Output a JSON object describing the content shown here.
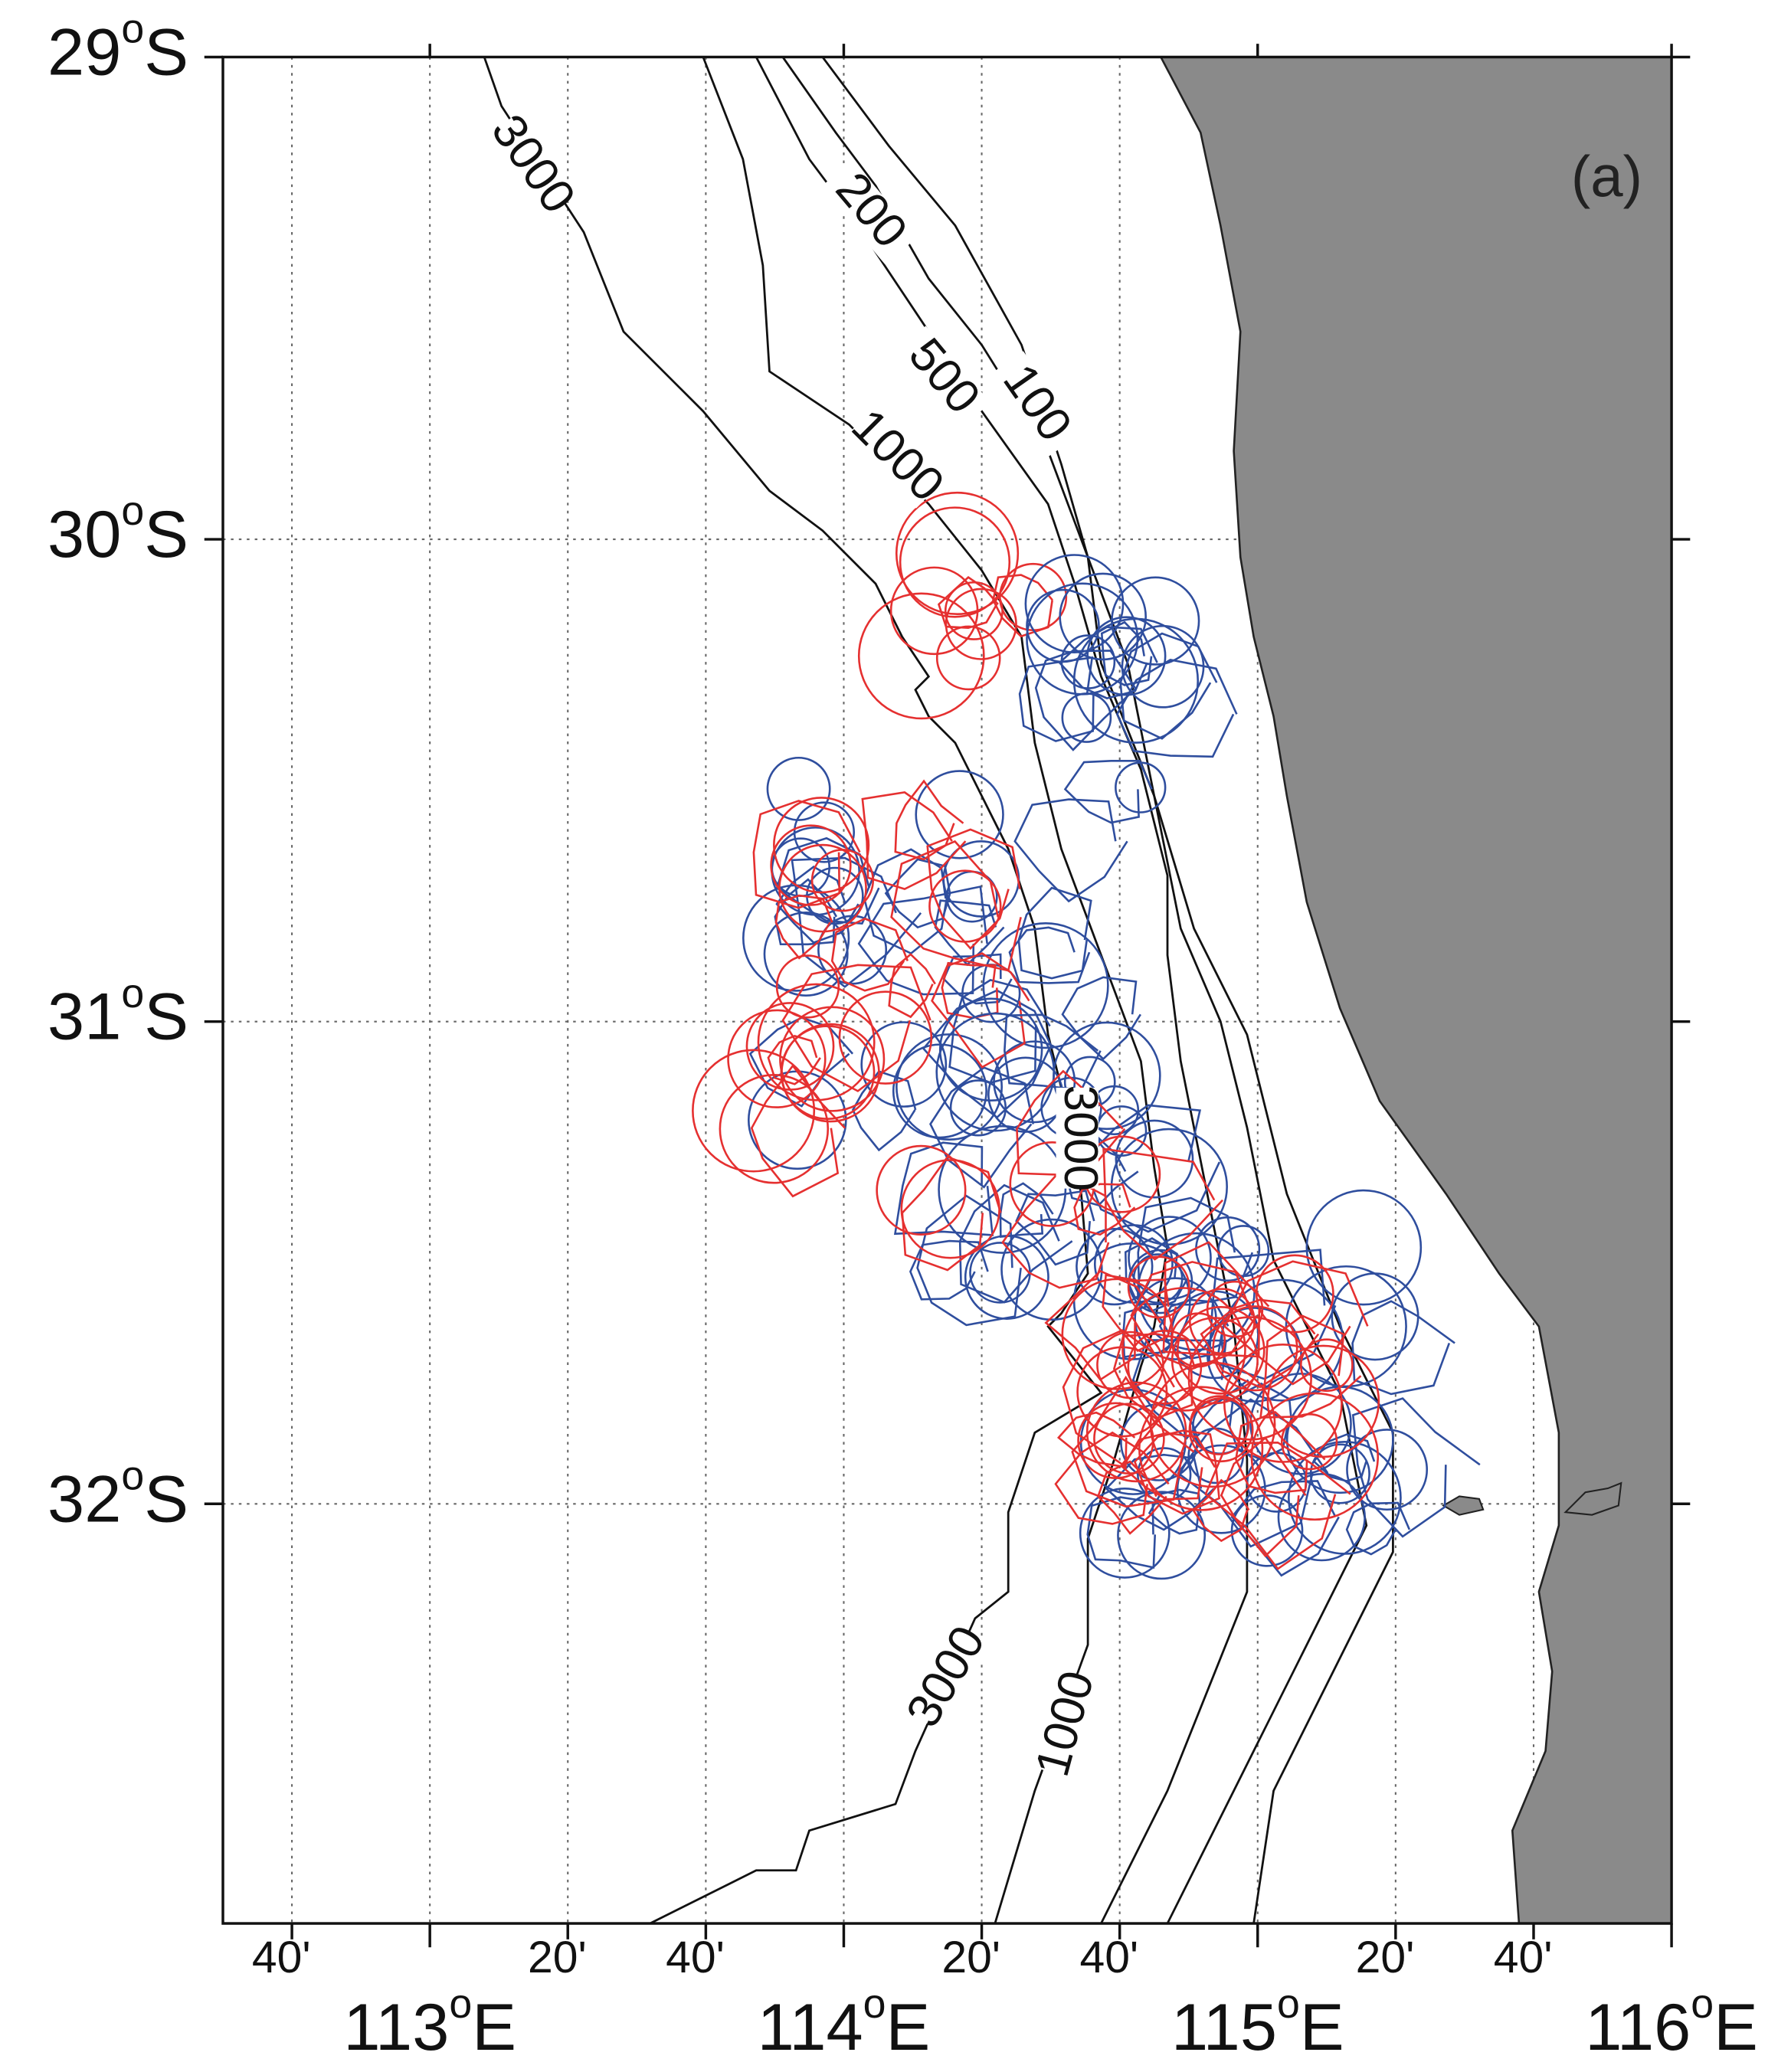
{
  "map": {
    "panel_label": "(a)",
    "degree_mark": "o",
    "lon_range": [
      112.5,
      116
    ],
    "lat_range": [
      -29,
      -32.87
    ],
    "lat_ticks": [
      {
        "value": -29,
        "deg": "29",
        "hemi": "S"
      },
      {
        "value": -30,
        "deg": "30",
        "hemi": "S"
      },
      {
        "value": -31,
        "deg": "31",
        "hemi": "S"
      },
      {
        "value": -32,
        "deg": "32",
        "hemi": "S"
      }
    ],
    "lon_ticks": [
      {
        "value": 113,
        "deg": "113",
        "hemi": "E"
      },
      {
        "value": 114,
        "deg": "114",
        "hemi": "E"
      },
      {
        "value": 115,
        "deg": "115",
        "hemi": "E"
      },
      {
        "value": 116,
        "deg": "116",
        "hemi": "E"
      }
    ],
    "minute_ticks": [
      {
        "value": 112.6667,
        "label": "40'"
      },
      {
        "value": 113.3333,
        "label": "20'"
      },
      {
        "value": 113.6667,
        "label": "40'"
      },
      {
        "value": 114.3333,
        "label": "20'"
      },
      {
        "value": 114.6667,
        "label": "40'"
      },
      {
        "value": 115.3333,
        "label": "20'"
      },
      {
        "value": 115.6667,
        "label": "40'"
      }
    ],
    "contour_labels": [
      "3000",
      "200",
      "500",
      "100",
      "1000",
      "3000",
      "3000",
      "1000"
    ]
  }
}
